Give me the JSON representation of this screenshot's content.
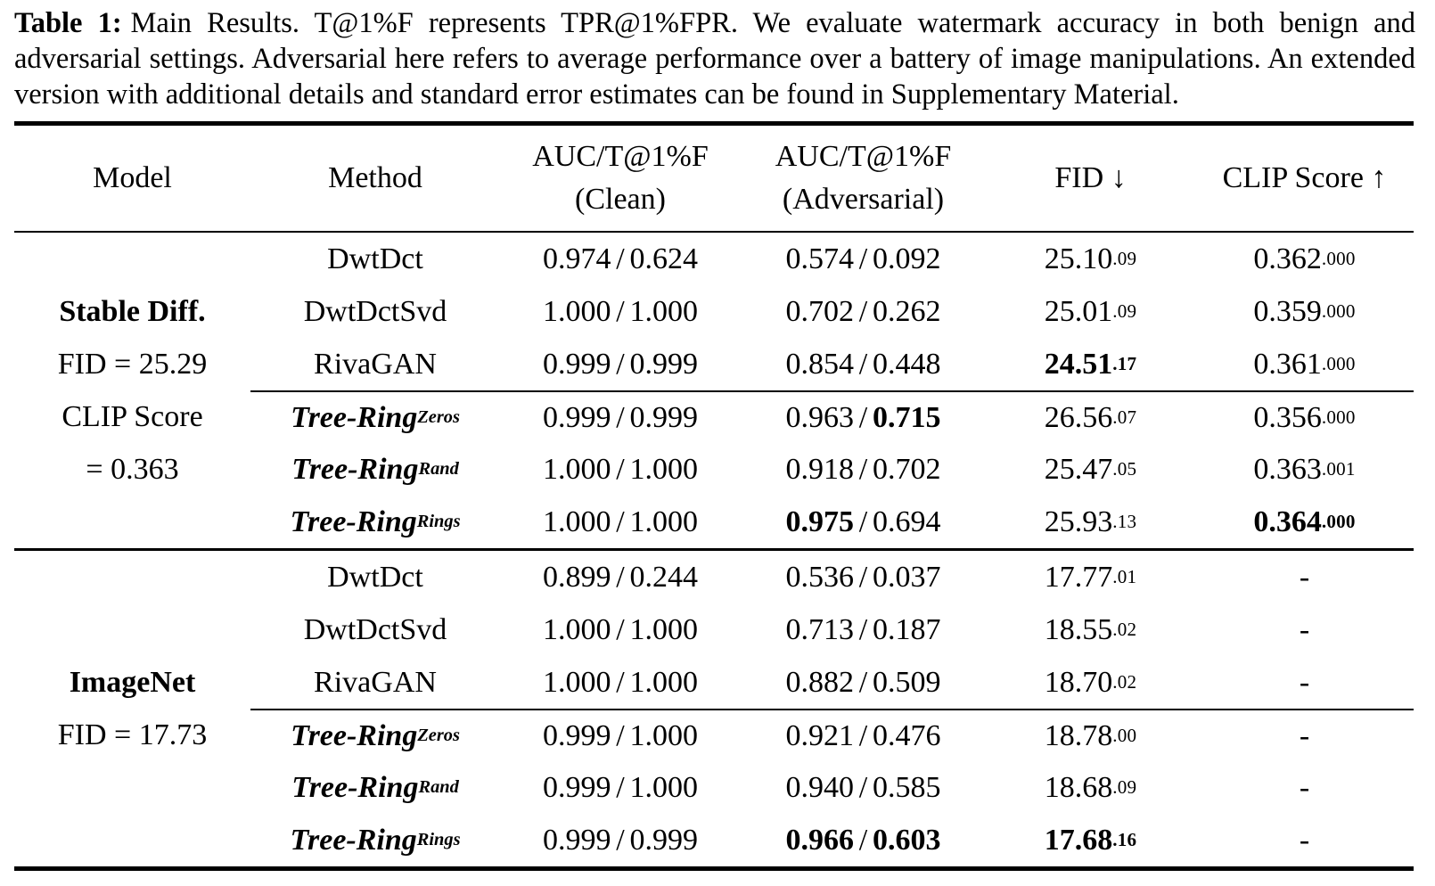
{
  "caption": {
    "label": "Table 1:",
    "text": "Main Results. T@1%F represents TPR@1%FPR. We evaluate watermark accuracy in both benign and adversarial settings. Adversarial here refers to average performance over a battery of image manipulations. An extended version with additional details and standard error estimates can be found in Supplementary Material."
  },
  "table": {
    "value_separator": "/",
    "headers": {
      "model": "Model",
      "method": "Method",
      "clean_1": "AUC/T@1%F",
      "clean_2": "(Clean)",
      "adv_1": "AUC/T@1%F",
      "adv_2": "(Adversarial)",
      "fid": "FID ↓",
      "clip": "CLIP Score ↑"
    },
    "blocks": [
      {
        "model_lines": [
          {
            "text": "Stable Diff.",
            "bold": true
          },
          {
            "text": "FID = 25.29",
            "bold": false
          },
          {
            "text": "CLIP Score",
            "bold": false
          },
          {
            "text": "= 0.363",
            "bold": false
          }
        ],
        "rows": [
          {
            "method": {
              "name": "DwtDct",
              "sub": "",
              "is_treering": false
            },
            "clean": {
              "a": "0.974",
              "b": "0.624",
              "a_bold": false,
              "b_bold": false
            },
            "adv": {
              "a": "0.574",
              "b": "0.092",
              "a_bold": false,
              "b_bold": false
            },
            "fid": {
              "main": "25.10",
              "sub": ".09",
              "bold": false
            },
            "clip": {
              "main": "0.362",
              "sub": ".000",
              "bold": false
            }
          },
          {
            "method": {
              "name": "DwtDctSvd",
              "sub": "",
              "is_treering": false
            },
            "clean": {
              "a": "1.000",
              "b": "1.000",
              "a_bold": false,
              "b_bold": false
            },
            "adv": {
              "a": "0.702",
              "b": "0.262",
              "a_bold": false,
              "b_bold": false
            },
            "fid": {
              "main": "25.01",
              "sub": ".09",
              "bold": false
            },
            "clip": {
              "main": "0.359",
              "sub": ".000",
              "bold": false
            }
          },
          {
            "method": {
              "name": "RivaGAN",
              "sub": "",
              "is_treering": false
            },
            "clean": {
              "a": "0.999",
              "b": "0.999",
              "a_bold": false,
              "b_bold": false
            },
            "adv": {
              "a": "0.854",
              "b": "0.448",
              "a_bold": false,
              "b_bold": false
            },
            "fid": {
              "main": "24.51",
              "sub": ".17",
              "bold": true
            },
            "clip": {
              "main": "0.361",
              "sub": ".000",
              "bold": false
            }
          },
          {
            "method": {
              "name": "Tree-Ring",
              "sub": "Zeros",
              "is_treering": true
            },
            "clean": {
              "a": "0.999",
              "b": "0.999",
              "a_bold": false,
              "b_bold": false
            },
            "adv": {
              "a": "0.963",
              "b": "0.715",
              "a_bold": false,
              "b_bold": true
            },
            "fid": {
              "main": "26.56",
              "sub": ".07",
              "bold": false
            },
            "clip": {
              "main": "0.356",
              "sub": ".000",
              "bold": false
            }
          },
          {
            "method": {
              "name": "Tree-Ring",
              "sub": "Rand",
              "is_treering": true
            },
            "clean": {
              "a": "1.000",
              "b": "1.000",
              "a_bold": false,
              "b_bold": false
            },
            "adv": {
              "a": "0.918",
              "b": "0.702",
              "a_bold": false,
              "b_bold": false
            },
            "fid": {
              "main": "25.47",
              "sub": ".05",
              "bold": false
            },
            "clip": {
              "main": "0.363",
              "sub": ".001",
              "bold": false
            }
          },
          {
            "method": {
              "name": "Tree-Ring",
              "sub": "Rings",
              "is_treering": true
            },
            "clean": {
              "a": "1.000",
              "b": "1.000",
              "a_bold": false,
              "b_bold": false
            },
            "adv": {
              "a": "0.975",
              "b": "0.694",
              "a_bold": true,
              "b_bold": false
            },
            "fid": {
              "main": "25.93",
              "sub": ".13",
              "bold": false
            },
            "clip": {
              "main": "0.364",
              "sub": ".000",
              "bold": true
            }
          }
        ]
      },
      {
        "model_lines": [
          {
            "text": "ImageNet",
            "bold": true
          },
          {
            "text": "FID = 17.73",
            "bold": false
          }
        ],
        "rows": [
          {
            "method": {
              "name": "DwtDct",
              "sub": "",
              "is_treering": false
            },
            "clean": {
              "a": "0.899",
              "b": "0.244",
              "a_bold": false,
              "b_bold": false
            },
            "adv": {
              "a": "0.536",
              "b": "0.037",
              "a_bold": false,
              "b_bold": false
            },
            "fid": {
              "main": "17.77",
              "sub": ".01",
              "bold": false
            },
            "clip": {
              "main": "-",
              "sub": "",
              "bold": false
            }
          },
          {
            "method": {
              "name": "DwtDctSvd",
              "sub": "",
              "is_treering": false
            },
            "clean": {
              "a": "1.000",
              "b": "1.000",
              "a_bold": false,
              "b_bold": false
            },
            "adv": {
              "a": "0.713",
              "b": "0.187",
              "a_bold": false,
              "b_bold": false
            },
            "fid": {
              "main": "18.55",
              "sub": ".02",
              "bold": false
            },
            "clip": {
              "main": "-",
              "sub": "",
              "bold": false
            }
          },
          {
            "method": {
              "name": "RivaGAN",
              "sub": "",
              "is_treering": false
            },
            "clean": {
              "a": "1.000",
              "b": "1.000",
              "a_bold": false,
              "b_bold": false
            },
            "adv": {
              "a": "0.882",
              "b": "0.509",
              "a_bold": false,
              "b_bold": false
            },
            "fid": {
              "main": "18.70",
              "sub": ".02",
              "bold": false
            },
            "clip": {
              "main": "-",
              "sub": "",
              "bold": false
            }
          },
          {
            "method": {
              "name": "Tree-Ring",
              "sub": "Zeros",
              "is_treering": true
            },
            "clean": {
              "a": "0.999",
              "b": "1.000",
              "a_bold": false,
              "b_bold": false
            },
            "adv": {
              "a": "0.921",
              "b": "0.476",
              "a_bold": false,
              "b_bold": false
            },
            "fid": {
              "main": "18.78",
              "sub": ".00",
              "bold": false
            },
            "clip": {
              "main": "-",
              "sub": "",
              "bold": false
            }
          },
          {
            "method": {
              "name": "Tree-Ring",
              "sub": "Rand",
              "is_treering": true
            },
            "clean": {
              "a": "0.999",
              "b": "1.000",
              "a_bold": false,
              "b_bold": false
            },
            "adv": {
              "a": "0.940",
              "b": "0.585",
              "a_bold": false,
              "b_bold": false
            },
            "fid": {
              "main": "18.68",
              "sub": ".09",
              "bold": false
            },
            "clip": {
              "main": "-",
              "sub": "",
              "bold": false
            }
          },
          {
            "method": {
              "name": "Tree-Ring",
              "sub": "Rings",
              "is_treering": true
            },
            "clean": {
              "a": "0.999",
              "b": "0.999",
              "a_bold": false,
              "b_bold": false
            },
            "adv": {
              "a": "0.966",
              "b": "0.603",
              "a_bold": true,
              "b_bold": true
            },
            "fid": {
              "main": "17.68",
              "sub": ".16",
              "bold": true
            },
            "clip": {
              "main": "-",
              "sub": "",
              "bold": false
            }
          }
        ]
      }
    ]
  }
}
